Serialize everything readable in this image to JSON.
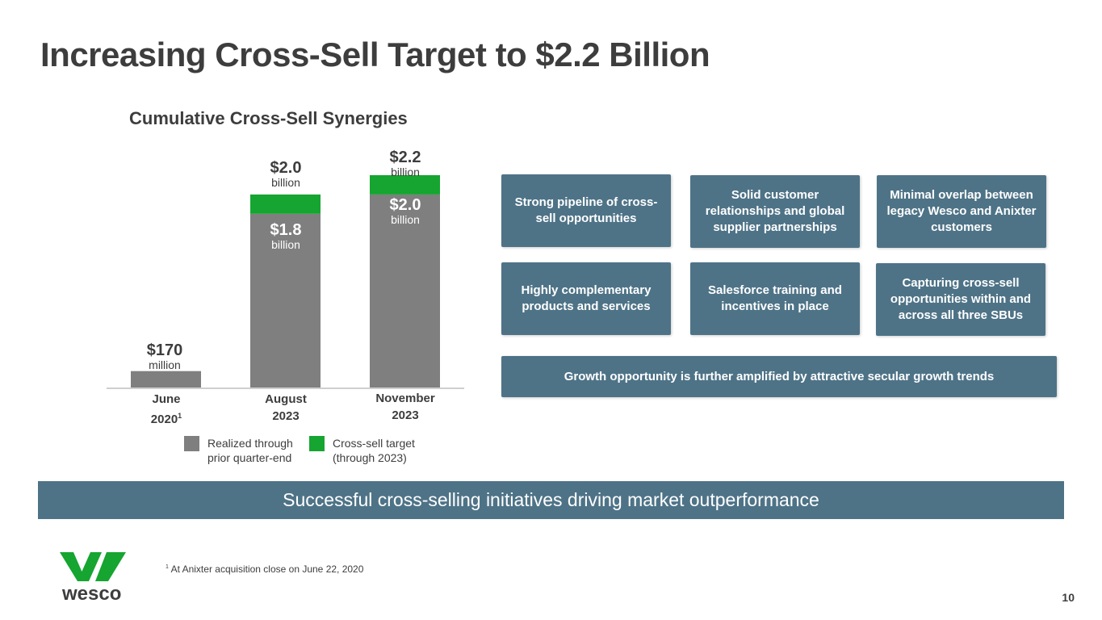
{
  "title": "Increasing Cross-Sell Target to $2.2 Billion",
  "colors": {
    "realized": "#7f7f7f",
    "target": "#15a530",
    "box": "#4e7387",
    "logo": "#15a530"
  },
  "chart_data": {
    "type": "bar",
    "stacked": true,
    "title": "Cumulative Cross-Sell Synergies",
    "categories": [
      "June 2020",
      "August 2023",
      "November 2023"
    ],
    "series": [
      {
        "name": "Realized through prior quarter-end",
        "values": [
          0.17,
          1.8,
          2.0
        ]
      },
      {
        "name": "Cross-sell target (through 2023)",
        "values": [
          0,
          0.2,
          0.2
        ]
      }
    ],
    "ylim": [
      0,
      2.2
    ],
    "units": "billion"
  },
  "bars": [
    {
      "cat_line1": "June",
      "cat_line2": "2020",
      "cat_sup": "1",
      "total_value": "$170",
      "total_unit": "million"
    },
    {
      "cat_line1": "August",
      "cat_line2": "2023",
      "cat_sup": "",
      "total_value": "$2.0",
      "total_unit": "billion",
      "inner_value": "$1.8",
      "inner_unit": "billion"
    },
    {
      "cat_line1": "November",
      "cat_line2": "2023",
      "cat_sup": "",
      "total_value": "$2.2",
      "total_unit": "billion",
      "inner_value": "$2.0",
      "inner_unit": "billion"
    }
  ],
  "legend": [
    {
      "label": "Realized through prior quarter-end"
    },
    {
      "label": "Cross-sell target (through 2023)"
    }
  ],
  "boxes": [
    "Strong pipeline of cross-sell opportunities",
    "Solid customer relationships and global supplier partnerships",
    "Minimal overlap between legacy Wesco and Anixter customers",
    "Highly complementary products and services",
    "Salesforce training and incentives in place",
    "Capturing cross-sell opportunities within and across all three SBUs"
  ],
  "growth_box": "Growth opportunity is further amplified by attractive secular growth trends",
  "banner": "Successful cross-selling initiatives driving market outperformance",
  "footnote": {
    "sup": "1",
    "text": " At Anixter acquisition close on June 22, 2020"
  },
  "logo_text": "wesco",
  "page_number": "10"
}
